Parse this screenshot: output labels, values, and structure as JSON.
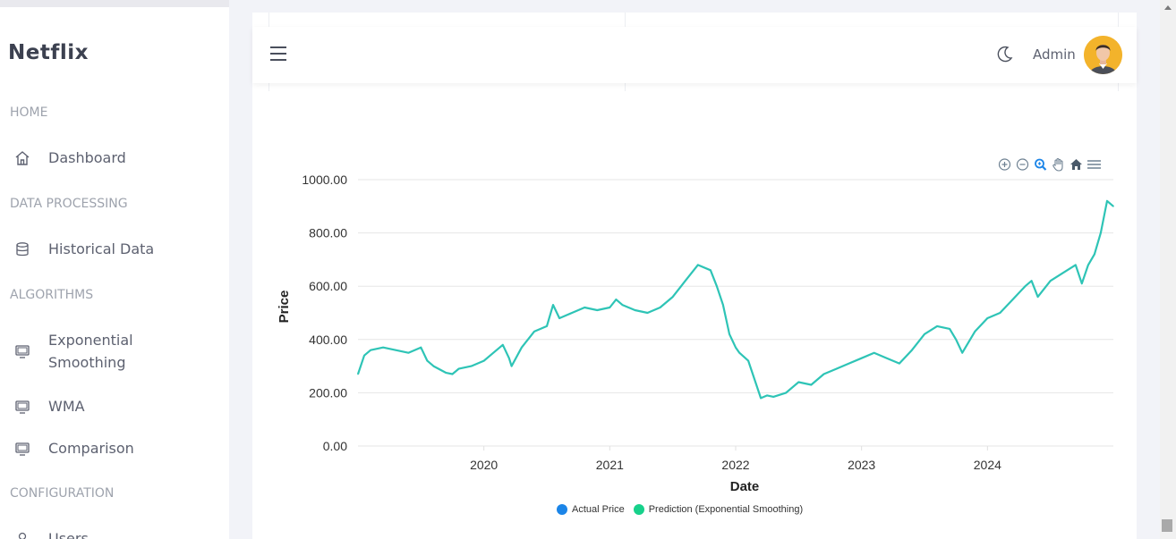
{
  "sidebar": {
    "brand": "Netflix",
    "sections": [
      {
        "label": "HOME"
      },
      {
        "label": "DATA PROCESSING"
      },
      {
        "label": "ALGORITHMS"
      },
      {
        "label": "CONFIGURATION"
      }
    ],
    "items": [
      {
        "label": "Dashboard",
        "icon": "home-icon"
      },
      {
        "label": "Historical Data",
        "icon": "database-icon"
      },
      {
        "label": "Exponential Smoothing",
        "label_line1": "Exponential",
        "label_line2": "Smoothing",
        "icon": "monitor-icon"
      },
      {
        "label": "WMA",
        "icon": "monitor-icon"
      },
      {
        "label": "Comparison",
        "icon": "monitor-icon"
      },
      {
        "label": "Users",
        "icon": "user-icon"
      }
    ]
  },
  "header": {
    "admin_label": "Admin",
    "theme_icon": "moon-icon",
    "menu_icon": "hamburger-icon"
  },
  "chart_toolbar": [
    "zoom-in-icon",
    "zoom-out-icon",
    "selection-zoom-icon",
    "pan-icon",
    "reset-home-icon",
    "menu-icon"
  ],
  "colors": {
    "series_line": "#2ec4b6",
    "actual_price": "#1b85e8",
    "prediction": "#17d18b",
    "accent_avatar": "#f3b32b"
  },
  "chart_data": {
    "type": "line",
    "xlabel": "Date",
    "ylabel": "Price",
    "ylim": [
      0,
      1000
    ],
    "yticks": [
      "0.00",
      "200.00",
      "400.00",
      "600.00",
      "800.00",
      "1000.00"
    ],
    "xticks": [
      "2020",
      "2021",
      "2022",
      "2023",
      "2024"
    ],
    "xlim": [
      2019.0,
      2025.0
    ],
    "legend": [
      {
        "name": "Actual Price"
      },
      {
        "name": "Prediction (Exponential Smoothing)"
      }
    ],
    "series": [
      {
        "name": "Prediction (Exponential Smoothing)",
        "x": [
          2019.0,
          2019.05,
          2019.1,
          2019.2,
          2019.3,
          2019.4,
          2019.5,
          2019.55,
          2019.6,
          2019.7,
          2019.75,
          2019.8,
          2019.9,
          2020.0,
          2020.05,
          2020.15,
          2020.2,
          2020.22,
          2020.3,
          2020.4,
          2020.5,
          2020.55,
          2020.6,
          2020.7,
          2020.8,
          2020.9,
          2021.0,
          2021.05,
          2021.1,
          2021.2,
          2021.3,
          2021.4,
          2021.5,
          2021.6,
          2021.7,
          2021.8,
          2021.85,
          2021.9,
          2021.95,
          2022.0,
          2022.03,
          2022.1,
          2022.2,
          2022.25,
          2022.3,
          2022.4,
          2022.5,
          2022.6,
          2022.7,
          2022.8,
          2022.9,
          2023.0,
          2023.1,
          2023.2,
          2023.3,
          2023.4,
          2023.5,
          2023.6,
          2023.7,
          2023.75,
          2023.8,
          2023.9,
          2024.0,
          2024.1,
          2024.2,
          2024.3,
          2024.35,
          2024.4,
          2024.5,
          2024.6,
          2024.7,
          2024.75,
          2024.8,
          2024.85,
          2024.9,
          2024.95,
          2025.0
        ],
        "y": [
          270,
          340,
          360,
          370,
          360,
          350,
          370,
          320,
          300,
          275,
          270,
          290,
          300,
          320,
          340,
          380,
          330,
          300,
          370,
          430,
          450,
          530,
          480,
          500,
          520,
          510,
          520,
          550,
          530,
          510,
          500,
          520,
          560,
          620,
          680,
          660,
          600,
          530,
          420,
          370,
          350,
          320,
          180,
          190,
          185,
          200,
          240,
          230,
          270,
          290,
          310,
          330,
          350,
          330,
          310,
          360,
          420,
          450,
          440,
          400,
          350,
          430,
          480,
          500,
          550,
          600,
          620,
          560,
          620,
          650,
          680,
          610,
          680,
          720,
          800,
          920,
          900
        ]
      }
    ]
  }
}
